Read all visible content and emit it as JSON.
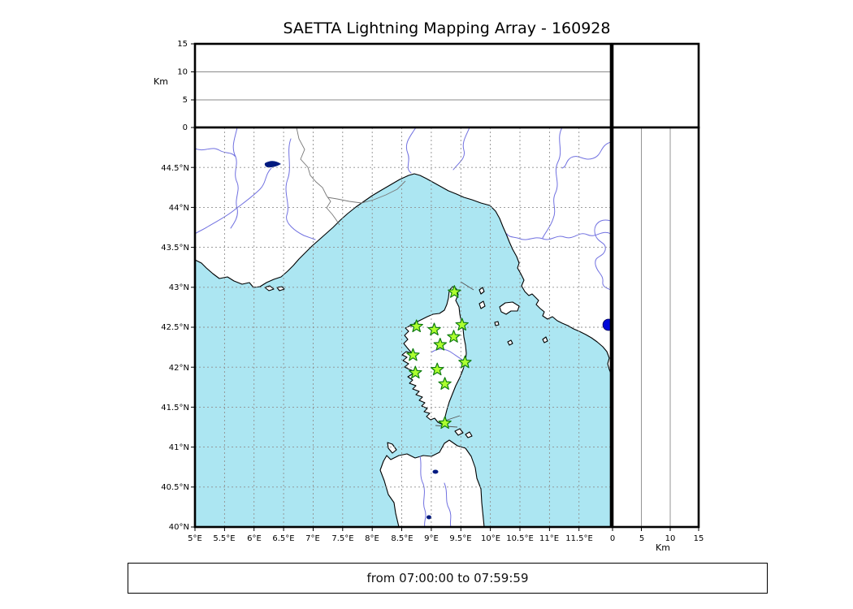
{
  "title": "SAETTA Lightning Mapping Array - 160928",
  "footer": {
    "text": "from 07:00:00 to 07:59:59"
  },
  "panels": {
    "alt_axis_label_left": "Km",
    "alt_axis_label_bottom": "Km",
    "alt_ticks_left": [
      "15",
      "10",
      "5",
      "0"
    ],
    "alt_ticks_bottom": [
      "0",
      "5",
      "10",
      "15"
    ],
    "alt_range_km": [
      0,
      15
    ]
  },
  "map_axes": {
    "lat_ticks": [
      "44.5°N",
      "44°N",
      "43.5°N",
      "43°N",
      "42.5°N",
      "42°N",
      "41.5°N",
      "41°N",
      "40.5°N",
      "40°N"
    ],
    "lon_ticks": [
      "5°E",
      "5.5°E",
      "6°E",
      "6.5°E",
      "7°E",
      "7.5°E",
      "8°E",
      "8.5°E",
      "9°E",
      "9.5°E",
      "10°E",
      "10.5°E",
      "11°E",
      "11.5°E"
    ],
    "lon_range_deg_e": [
      5.0,
      12.04
    ],
    "lat_range_deg_n": [
      40.0,
      45.0
    ]
  },
  "map": {
    "colors": {
      "sea": "#ace6f2",
      "land": "#ffffff",
      "coastline": "#000000",
      "river": "#7070e0",
      "grid": "#909090",
      "station_fill": "#adff2f",
      "station_edge": "#0f7d0f",
      "extra_dot": "#0008d8"
    },
    "stations": [
      {
        "lon": 9.39,
        "lat": 42.94
      },
      {
        "lon": 8.75,
        "lat": 42.51
      },
      {
        "lon": 9.05,
        "lat": 42.47
      },
      {
        "lon": 9.52,
        "lat": 42.53
      },
      {
        "lon": 9.38,
        "lat": 42.38
      },
      {
        "lon": 9.15,
        "lat": 42.28
      },
      {
        "lon": 8.69,
        "lat": 42.15
      },
      {
        "lon": 9.57,
        "lat": 42.06
      },
      {
        "lon": 9.1,
        "lat": 41.97
      },
      {
        "lon": 8.73,
        "lat": 41.93
      },
      {
        "lon": 9.23,
        "lat": 41.79
      },
      {
        "lon": 9.23,
        "lat": 41.3
      }
    ],
    "extra_marker": {
      "lon": 12.0,
      "lat": 42.53
    }
  }
}
